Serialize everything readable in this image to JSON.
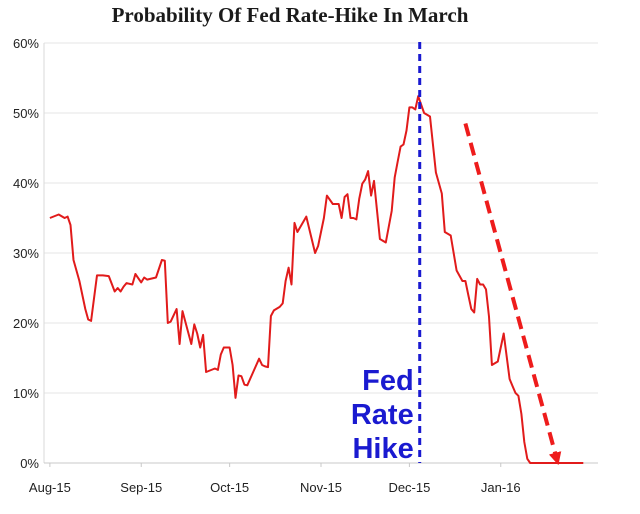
{
  "chart_data": {
    "type": "line",
    "title": "Probability Of Fed Rate-Hike In March",
    "xlabel": "",
    "ylabel": "",
    "ylim": [
      0,
      60
    ],
    "yticks": [
      0,
      10,
      20,
      30,
      40,
      50,
      60
    ],
    "ytick_labels": [
      "0%",
      "10%",
      "20%",
      "30%",
      "40%",
      "50%",
      "60%"
    ],
    "xticks": [
      {
        "label": "Aug-15",
        "day": 0
      },
      {
        "label": "Sep-15",
        "day": 31
      },
      {
        "label": "Oct-15",
        "day": 61
      },
      {
        "label": "Nov-15",
        "day": 92
      },
      {
        "label": "Dec-15",
        "day": 122
      },
      {
        "label": "Jan-16",
        "day": 153
      }
    ],
    "xlim": [
      -2,
      186
    ],
    "grid": true,
    "colors": {
      "series": "#e11b1b",
      "event_line": "#1a1ad0",
      "annotation_text": "#1a1ad0",
      "trend_arrow": "#ee1c1c"
    },
    "series": [
      {
        "name": "Probability of Fed rate hike in March",
        "x": [
          0,
          3,
          5,
          6,
          7,
          8,
          10,
          12,
          13,
          14,
          16,
          18,
          20,
          22,
          23,
          24,
          25,
          26,
          28,
          29,
          31,
          32,
          33,
          36,
          38,
          39,
          40,
          41,
          43,
          44,
          45,
          48,
          49,
          50,
          51,
          52,
          53,
          56,
          57,
          58,
          59,
          60,
          61,
          62,
          63,
          64,
          65,
          66,
          67,
          69,
          71,
          72,
          73,
          74,
          75,
          76,
          78,
          79,
          80,
          81,
          82,
          83,
          84,
          87,
          90,
          91,
          93,
          94,
          96,
          98,
          99,
          100,
          101,
          102,
          103,
          104,
          105,
          106,
          107,
          108,
          109,
          110,
          112,
          114,
          116,
          117,
          118,
          119,
          120,
          121,
          122,
          123,
          124,
          125,
          127,
          129,
          131,
          133,
          134,
          136,
          138,
          140,
          141,
          142,
          143,
          144,
          145,
          146,
          147,
          148,
          149,
          150,
          152,
          154,
          156,
          157,
          158,
          159,
          160,
          161,
          162,
          163,
          164,
          165,
          166,
          167,
          168,
          169,
          170,
          171,
          172,
          173,
          174,
          175,
          176,
          177,
          178,
          179,
          180,
          181
        ],
        "y": [
          35,
          35.5,
          35,
          35.2,
          34,
          29,
          26,
          22,
          20.5,
          20.3,
          26.8,
          26.8,
          26.7,
          24.5,
          25,
          24.5,
          25.2,
          25.7,
          25.5,
          27,
          25.8,
          26.5,
          26.2,
          26.5,
          29,
          28.9,
          20,
          20.2,
          22,
          17,
          21.7,
          17,
          19.8,
          18.5,
          16.5,
          18.3,
          13,
          13.5,
          13.3,
          15.5,
          16.5,
          16.5,
          16.5,
          14,
          9.3,
          12.5,
          12.4,
          11.2,
          11.1,
          13,
          14.9,
          14,
          13.8,
          13.7,
          21,
          21.8,
          22.3,
          22.8,
          26,
          27.9,
          25.5,
          34.3,
          33,
          35.2,
          30,
          31,
          35,
          38.2,
          37,
          37,
          35,
          38,
          38.4,
          35,
          35,
          34.8,
          37.8,
          39.9,
          40.5,
          41.7,
          38.2,
          40.3,
          32,
          31.5,
          36,
          40.8,
          43,
          45.2,
          45.5,
          47.5,
          50.8,
          50.8,
          50.5,
          52.4,
          50,
          49.5,
          41.5,
          38.5,
          33,
          32.5,
          27.5,
          26,
          26,
          24,
          22,
          21.5,
          26.3,
          25.5,
          25.5,
          24.8,
          20.9,
          14,
          14.5,
          18.5,
          12,
          11,
          10,
          9.6,
          7,
          3,
          0.6,
          0,
          0,
          0,
          0,
          0,
          0,
          0,
          0,
          0,
          0,
          0,
          0,
          0,
          0,
          0,
          0,
          0,
          0,
          0
        ]
      }
    ],
    "event": {
      "day": 125.5,
      "label_lines": [
        "Fed",
        "Rate",
        "Hike"
      ]
    },
    "trend_arrow": {
      "from": {
        "day": 141,
        "value": 48.5
      },
      "to": {
        "day": 172,
        "value": 0
      }
    }
  }
}
